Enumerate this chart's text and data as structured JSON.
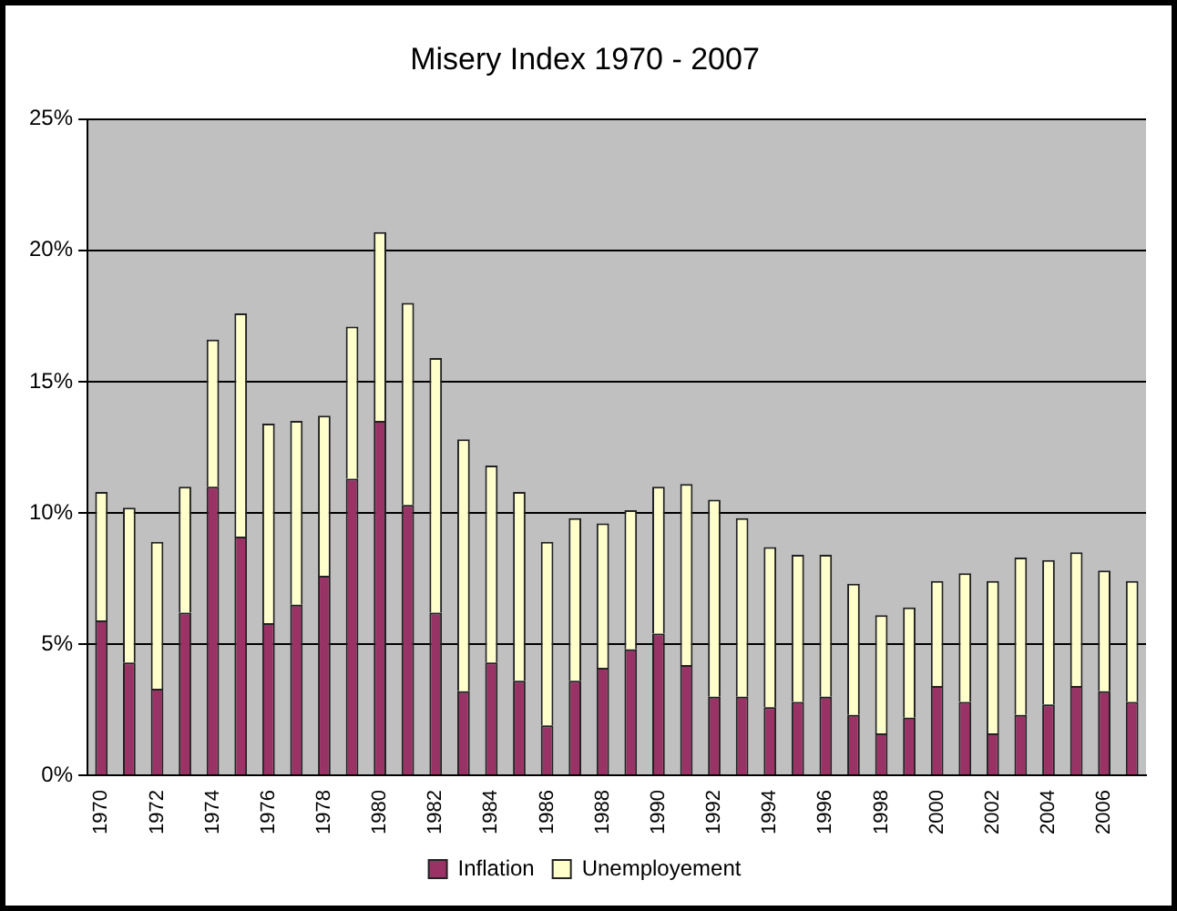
{
  "chart_data": {
    "type": "bar",
    "title": "Misery Index 1970 - 2007",
    "stacked": true,
    "grid": "y",
    "legend": "bottom",
    "categories": [
      "1970",
      null,
      "1972",
      null,
      "1974",
      null,
      "1976",
      null,
      "1978",
      null,
      "1980",
      null,
      "1982",
      null,
      "1984",
      null,
      "1986",
      null,
      "1988",
      null,
      "1990",
      null,
      "1992",
      null,
      "1994",
      null,
      "1996",
      null,
      "1998",
      null,
      "2000",
      null,
      "2002",
      null,
      "2004",
      null,
      "2006",
      null
    ],
    "ylim": [
      0,
      25
    ],
    "yticks": [
      {
        "value": 0,
        "label": "0%"
      },
      {
        "value": 5,
        "label": "5%"
      },
      {
        "value": 10,
        "label": "10%"
      },
      {
        "value": 15,
        "label": "15%"
      },
      {
        "value": 20,
        "label": "20%"
      },
      {
        "value": 25,
        "label": "25%"
      }
    ],
    "series": [
      {
        "name": "Inflation",
        "color": "#993366",
        "values": [
          5.9,
          4.3,
          3.3,
          6.2,
          11.0,
          9.1,
          5.8,
          6.5,
          7.6,
          11.3,
          13.5,
          10.3,
          6.2,
          3.2,
          4.3,
          3.6,
          1.9,
          3.6,
          4.1,
          4.8,
          5.4,
          4.2,
          3.0,
          3.0,
          2.6,
          2.8,
          3.0,
          2.3,
          1.6,
          2.2,
          3.4,
          2.8,
          1.6,
          2.3,
          2.7,
          3.4,
          3.2,
          2.8
        ]
      },
      {
        "name": "Unemployement",
        "color": "#ffffcc",
        "values": [
          4.9,
          5.9,
          5.6,
          4.8,
          5.6,
          8.5,
          7.6,
          7.0,
          6.1,
          5.8,
          7.2,
          7.7,
          9.7,
          9.6,
          7.5,
          7.2,
          7.0,
          6.2,
          5.5,
          5.3,
          5.6,
          6.9,
          7.5,
          6.8,
          6.1,
          5.6,
          5.4,
          5.0,
          4.5,
          4.2,
          4.0,
          4.9,
          5.8,
          6.0,
          5.5,
          5.1,
          4.6,
          4.6
        ]
      }
    ]
  }
}
